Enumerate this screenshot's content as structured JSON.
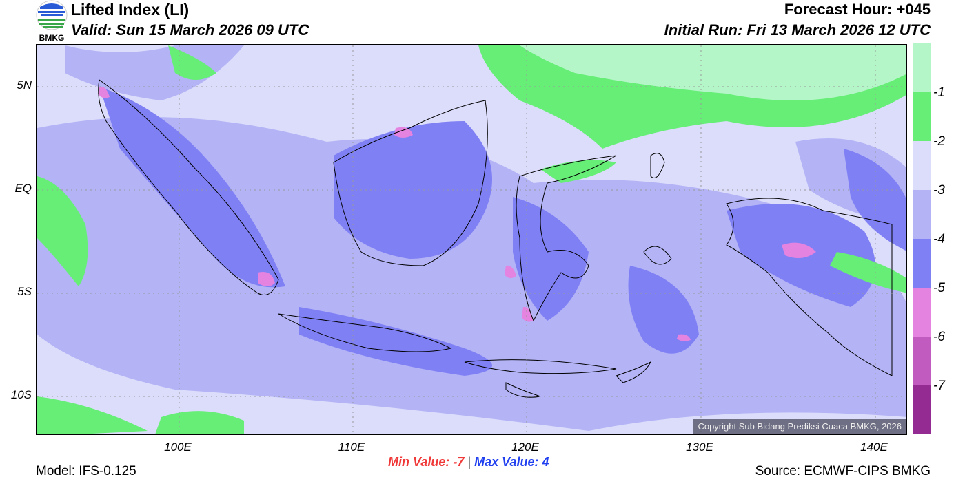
{
  "header": {
    "title": "Lifted Index (LI)",
    "valid": "Valid: Sun 15 March 2026 09 UTC",
    "forecast_hour": "Forecast Hour: +045",
    "initial_run": "Initial Run: Fri 13 March 2026 12 UTC",
    "logo_text": "BMKG"
  },
  "axes": {
    "lat_labels": [
      "5N",
      "EQ",
      "5S",
      "10S"
    ],
    "lon_labels": [
      "100E",
      "110E",
      "120E",
      "130E",
      "140E"
    ]
  },
  "colorbar": {
    "labels": [
      "-1",
      "-2",
      "-3",
      "-4",
      "-5",
      "-6",
      "-7"
    ],
    "colors": [
      "#b4f6c8",
      "#66ee77",
      "#dcdcfb",
      "#b3b3f6",
      "#8080f5",
      "#e483e0",
      "#c25bc0",
      "#942b92"
    ]
  },
  "copyright": "Copyright Sub Bidang Prediksi Cuaca BMKG, 2026",
  "footer": {
    "min_label": "Min Value:",
    "min_value": "-7",
    "separator": "|",
    "max_label": "Max Value:",
    "max_value": "4",
    "model": "Model: IFS-0.125",
    "source": "Source: ECMWF-CIPS BMKG"
  }
}
